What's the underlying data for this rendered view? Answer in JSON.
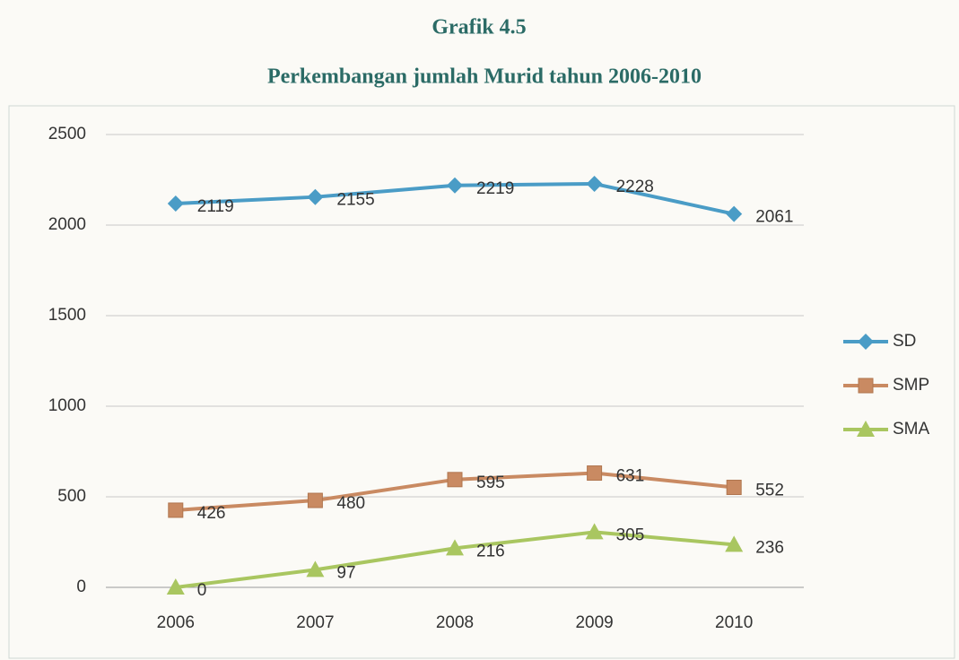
{
  "chart_data": {
    "type": "line",
    "title": "Grafik 4.5",
    "subtitle": "Perkembangan jumlah Murid tahun 2006-2010",
    "categories": [
      "2006",
      "2007",
      "2008",
      "2009",
      "2010"
    ],
    "series": [
      {
        "name": "SD",
        "color": "#4a9cc6",
        "marker": "diamond",
        "values": [
          2119,
          2155,
          2219,
          2228,
          2061
        ]
      },
      {
        "name": "SMP",
        "color": "#c98a62",
        "marker": "square",
        "values": [
          426,
          480,
          595,
          631,
          552
        ]
      },
      {
        "name": "SMA",
        "color": "#a9c660",
        "marker": "triangle",
        "values": [
          0,
          97,
          216,
          305,
          236
        ]
      }
    ],
    "ylim": [
      0,
      2500
    ],
    "yticks": [
      0,
      500,
      1000,
      1500,
      2000,
      2500
    ],
    "grid": true,
    "legend": "right",
    "data_labels": true
  }
}
